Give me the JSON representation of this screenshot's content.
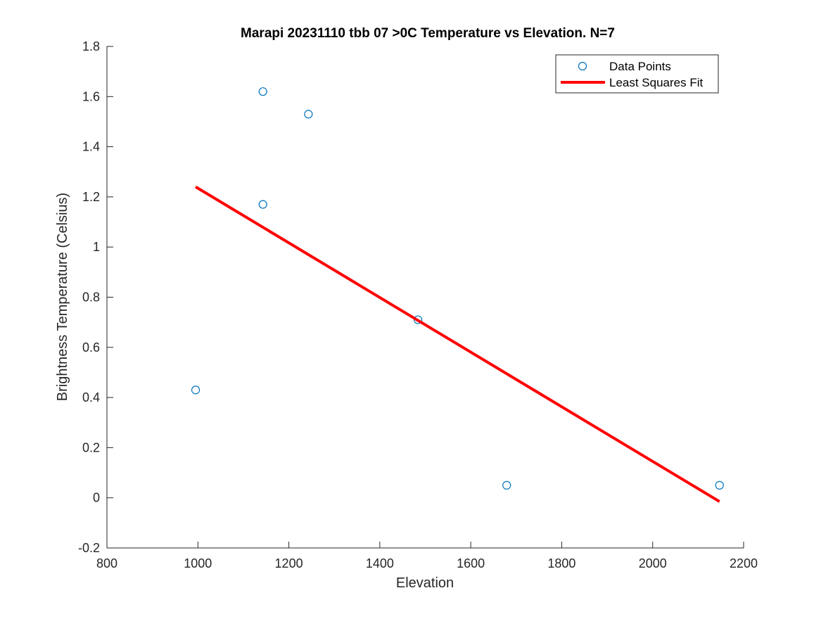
{
  "chart_data": {
    "type": "scatter",
    "title": "Marapi 20231110 tbb 07 >0C Temperature vs Elevation. N=7",
    "xlabel": "Elevation",
    "ylabel": "Brightness Temperature (Celsius)",
    "xlim": [
      800,
      2200
    ],
    "ylim": [
      -0.2,
      1.8
    ],
    "xticks": [
      800,
      1000,
      1200,
      1400,
      1600,
      1800,
      2000,
      2200
    ],
    "yticks": [
      -0.2,
      0,
      0.2,
      0.4,
      0.6,
      0.8,
      1,
      1.2,
      1.4,
      1.6,
      1.8
    ],
    "grid": false,
    "legend_position": "top-right",
    "series": [
      {
        "name": "Data Points",
        "kind": "scatter",
        "marker": "open-circle",
        "color": "#0072BD",
        "x": [
          995,
          1143,
          1143,
          1243,
          1484,
          1679,
          2147
        ],
        "y": [
          0.43,
          1.62,
          1.17,
          1.53,
          0.71,
          0.05,
          0.05
        ]
      },
      {
        "name": "Least Squares Fit",
        "kind": "line",
        "color": "#FF0000",
        "x": [
          995,
          2147
        ],
        "y": [
          1.24,
          -0.015
        ]
      }
    ]
  }
}
